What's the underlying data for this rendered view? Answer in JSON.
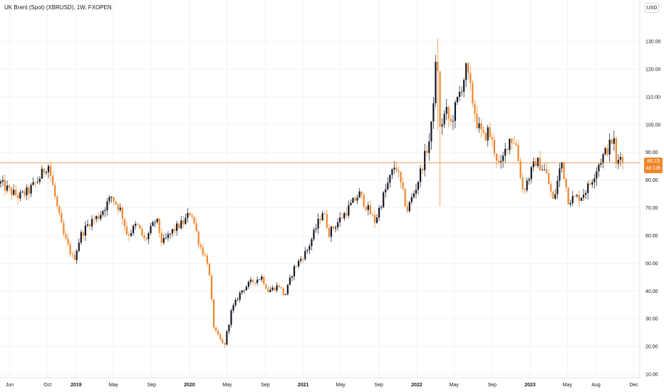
{
  "header": {
    "title": "UK Brent (Spot) (XBRUSD), 1W, FXOPEN",
    "currency": "USD"
  },
  "price_tag": {
    "price": "86.23",
    "countdown": "4d 13h"
  },
  "colors": {
    "up": "#131722",
    "down": "#f0862b",
    "grid": "#f0f3fa",
    "last_line": "#f0862b"
  },
  "chart_data": {
    "type": "candlestick",
    "title": "UK Brent (Spot) (XBRUSD), 1W, FXOPEN",
    "ylabel": "USD",
    "ylim": [
      10,
      135
    ],
    "y_ticks": [
      130,
      120,
      110,
      100,
      90,
      80,
      70,
      60,
      50,
      40,
      30,
      20,
      10
    ],
    "y_tick_labels": [
      "130.00",
      "120.00",
      "110.00",
      "100.00",
      "90.00",
      "80.00",
      "70.00",
      "60.00",
      "50.00",
      "40.00",
      "30.00",
      "20.00",
      "10.00"
    ],
    "x_ticks": [
      {
        "x": "2018-06-01",
        "label": "Jun"
      },
      {
        "x": "2018-10-01",
        "label": "Oct"
      },
      {
        "x": "2019-01-01",
        "label": "2019"
      },
      {
        "x": "2019-05-01",
        "label": "May"
      },
      {
        "x": "2019-09-01",
        "label": "Sep"
      },
      {
        "x": "2020-01-01",
        "label": "2020"
      },
      {
        "x": "2020-05-01",
        "label": "May"
      },
      {
        "x": "2020-09-01",
        "label": "Sep"
      },
      {
        "x": "2021-01-01",
        "label": "2021"
      },
      {
        "x": "2021-05-01",
        "label": "May"
      },
      {
        "x": "2021-09-01",
        "label": "Sep"
      },
      {
        "x": "2022-01-01",
        "label": "2022"
      },
      {
        "x": "2022-05-01",
        "label": "May"
      },
      {
        "x": "2022-09-01",
        "label": "Sep"
      },
      {
        "x": "2023-01-01",
        "label": "2023"
      },
      {
        "x": "2023-05-01",
        "label": "May"
      },
      {
        "x": "2023-08-01",
        "label": "Aug"
      },
      {
        "x": "2023-12-01",
        "label": "Dec"
      }
    ],
    "xlim": [
      "2018-05-01",
      "2023-12-20"
    ],
    "last_price": 86.23,
    "price_path": [
      [
        "2018-05-01",
        79
      ],
      [
        "2018-06-01",
        76
      ],
      [
        "2018-07-01",
        74
      ],
      [
        "2018-08-01",
        76
      ],
      [
        "2018-09-01",
        80
      ],
      [
        "2018-10-03",
        86
      ],
      [
        "2018-11-01",
        70
      ],
      [
        "2018-11-22",
        60
      ],
      [
        "2018-12-24",
        51
      ],
      [
        "2019-01-15",
        60
      ],
      [
        "2019-02-15",
        65
      ],
      [
        "2019-03-15",
        67
      ],
      [
        "2019-04-25",
        74
      ],
      [
        "2019-05-25",
        69
      ],
      [
        "2019-06-15",
        60
      ],
      [
        "2019-07-15",
        64
      ],
      [
        "2019-08-10",
        58
      ],
      [
        "2019-09-16",
        66
      ],
      [
        "2019-10-05",
        57
      ],
      [
        "2019-11-10",
        62
      ],
      [
        "2019-12-15",
        65
      ],
      [
        "2020-01-06",
        69
      ],
      [
        "2020-02-01",
        57
      ],
      [
        "2020-03-01",
        50
      ],
      [
        "2020-03-20",
        26
      ],
      [
        "2020-04-21",
        20
      ],
      [
        "2020-05-15",
        33
      ],
      [
        "2020-06-15",
        40
      ],
      [
        "2020-07-15",
        43
      ],
      [
        "2020-08-20",
        45
      ],
      [
        "2020-09-10",
        40
      ],
      [
        "2020-10-15",
        42
      ],
      [
        "2020-11-02",
        38
      ],
      [
        "2020-12-01",
        48
      ],
      [
        "2021-01-15",
        55
      ],
      [
        "2021-03-05",
        69
      ],
      [
        "2021-03-25",
        61
      ],
      [
        "2021-05-15",
        68
      ],
      [
        "2021-06-30",
        75
      ],
      [
        "2021-08-20",
        65
      ],
      [
        "2021-09-15",
        74
      ],
      [
        "2021-10-25",
        86
      ],
      [
        "2021-12-01",
        69
      ],
      [
        "2022-01-01",
        78
      ],
      [
        "2022-02-15",
        96
      ],
      [
        "2022-03-08",
        128
      ],
      [
        "2022-03-16",
        98
      ],
      [
        "2022-04-05",
        105
      ],
      [
        "2022-04-20",
        100
      ],
      [
        "2022-06-10",
        120
      ],
      [
        "2022-07-15",
        100
      ],
      [
        "2022-08-05",
        95
      ],
      [
        "2022-08-20",
        98
      ],
      [
        "2022-09-26",
        84
      ],
      [
        "2022-10-25",
        95
      ],
      [
        "2022-11-15",
        94
      ],
      [
        "2022-12-09",
        76
      ],
      [
        "2023-01-20",
        87
      ],
      [
        "2023-02-20",
        83
      ],
      [
        "2023-03-17",
        72
      ],
      [
        "2023-04-12",
        87
      ],
      [
        "2023-05-04",
        73
      ],
      [
        "2023-06-12",
        74
      ],
      [
        "2023-07-10",
        78
      ],
      [
        "2023-08-10",
        86
      ],
      [
        "2023-09-27",
        95
      ],
      [
        "2023-10-06",
        84
      ],
      [
        "2023-10-18",
        91
      ],
      [
        "2023-10-27",
        86.23
      ]
    ],
    "grid": true
  }
}
